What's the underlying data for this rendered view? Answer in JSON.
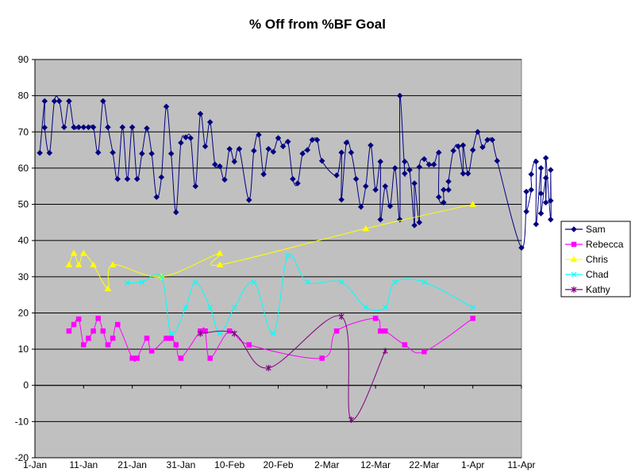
{
  "chart_data": {
    "type": "line",
    "title": "% Off from %BF Goal",
    "xlabel": "",
    "ylabel": "",
    "x_axis": {
      "type": "date",
      "range": [
        "2005-01-01",
        "2005-04-11"
      ],
      "ticks": [
        "2005-01-01",
        "2005-01-11",
        "2005-01-21",
        "2005-01-31",
        "2005-02-10",
        "2005-02-20",
        "2005-03-02",
        "2005-03-12",
        "2005-03-22",
        "2005-04-01",
        "2005-04-11"
      ],
      "tick_labels": [
        "1-Jan",
        "11-Jan",
        "21-Jan",
        "31-Jan",
        "10-Feb",
        "20-Feb",
        "2-Mar",
        "12-Mar",
        "22-Mar",
        "1-Apr",
        "11-Apr"
      ]
    },
    "y_axis": {
      "range": [
        -20,
        90
      ],
      "ticks": [
        -20,
        -10,
        0,
        10,
        20,
        30,
        40,
        50,
        60,
        70,
        80,
        90
      ],
      "tick_labels": [
        "-20",
        "-10",
        "0",
        "10",
        "20",
        "30",
        "40",
        "50",
        "60",
        "70",
        "80",
        "90"
      ]
    },
    "grid": "horizontal major gridlines",
    "plot_background": "#c0c0c0",
    "legend": {
      "position": "right"
    },
    "series": [
      {
        "name": "Sam",
        "color": "#000080",
        "marker": "diamond",
        "smooth": true,
        "points": [
          [
            "2005-01-02",
            64.2
          ],
          [
            "2005-01-03",
            78.5
          ],
          [
            "2005-01-03",
            71.2
          ],
          [
            "2005-01-04",
            64.2
          ],
          [
            "2005-01-05",
            78.5
          ],
          [
            "2005-01-06",
            78.5
          ],
          [
            "2005-01-07",
            71.3
          ],
          [
            "2005-01-08",
            78.5
          ],
          [
            "2005-01-09",
            71.3
          ],
          [
            "2005-01-10",
            71.3
          ],
          [
            "2005-01-11",
            71.3
          ],
          [
            "2005-01-12",
            71.3
          ],
          [
            "2005-01-13",
            71.3
          ],
          [
            "2005-01-14",
            64.3
          ],
          [
            "2005-01-15",
            78.5
          ],
          [
            "2005-01-16",
            71.3
          ],
          [
            "2005-01-17",
            64.3
          ],
          [
            "2005-01-18",
            57.0
          ],
          [
            "2005-01-19",
            71.3
          ],
          [
            "2005-01-20",
            57.0
          ],
          [
            "2005-01-21",
            71.3
          ],
          [
            "2005-01-22",
            57.0
          ],
          [
            "2005-01-23",
            64.0
          ],
          [
            "2005-01-24",
            71.0
          ],
          [
            "2005-01-25",
            64.0
          ],
          [
            "2005-01-26",
            52.0
          ],
          [
            "2005-01-27",
            57.5
          ],
          [
            "2005-01-28",
            77.0
          ],
          [
            "2005-01-29",
            64.0
          ],
          [
            "2005-01-30",
            47.8
          ],
          [
            "2005-01-31",
            67.0
          ],
          [
            "2005-02-01",
            68.5
          ],
          [
            "2005-02-02",
            68.3
          ],
          [
            "2005-02-03",
            55.0
          ],
          [
            "2005-02-04",
            75.0
          ],
          [
            "2005-02-05",
            66.0
          ],
          [
            "2005-02-06",
            72.7
          ],
          [
            "2005-02-07",
            61.0
          ],
          [
            "2005-02-08",
            60.5
          ],
          [
            "2005-02-09",
            56.8
          ],
          [
            "2005-02-10",
            65.3
          ],
          [
            "2005-02-11",
            61.8
          ],
          [
            "2005-02-12",
            65.3
          ],
          [
            "2005-02-14",
            51.2
          ],
          [
            "2005-02-15",
            64.8
          ],
          [
            "2005-02-16",
            69.2
          ],
          [
            "2005-02-17",
            58.3
          ],
          [
            "2005-02-18",
            65.3
          ],
          [
            "2005-02-19",
            64.5
          ],
          [
            "2005-02-20",
            68.3
          ],
          [
            "2005-02-21",
            66.0
          ],
          [
            "2005-02-22",
            67.3
          ],
          [
            "2005-02-23",
            57.0
          ],
          [
            "2005-02-24",
            55.8
          ],
          [
            "2005-02-25",
            64.0
          ],
          [
            "2005-02-26",
            65.0
          ],
          [
            "2005-02-27",
            67.8
          ],
          [
            "2005-02-28",
            67.8
          ],
          [
            "2005-03-01",
            62.0
          ],
          [
            "2005-03-04",
            58.0
          ],
          [
            "2005-03-05",
            64.3
          ],
          [
            "2005-03-05",
            51.3
          ],
          [
            "2005-03-06",
            67.0
          ],
          [
            "2005-03-07",
            64.3
          ],
          [
            "2005-03-08",
            57.0
          ],
          [
            "2005-03-09",
            49.3
          ],
          [
            "2005-03-10",
            55.0
          ],
          [
            "2005-03-11",
            66.3
          ],
          [
            "2005-03-12",
            54.0
          ],
          [
            "2005-03-13",
            61.8
          ],
          [
            "2005-03-13",
            45.8
          ],
          [
            "2005-03-14",
            55.0
          ],
          [
            "2005-03-15",
            49.5
          ],
          [
            "2005-03-16",
            60.0
          ],
          [
            "2005-03-17",
            45.8
          ],
          [
            "2005-03-17",
            80.0
          ],
          [
            "2005-03-18",
            58.5
          ],
          [
            "2005-03-18",
            61.8
          ],
          [
            "2005-03-19",
            59.5
          ],
          [
            "2005-03-20",
            44.2
          ],
          [
            "2005-03-20",
            55.8
          ],
          [
            "2005-03-21",
            45.0
          ],
          [
            "2005-03-21",
            60.3
          ],
          [
            "2005-03-22",
            62.5
          ],
          [
            "2005-03-23",
            61.0
          ],
          [
            "2005-03-24",
            61.0
          ],
          [
            "2005-03-25",
            64.3
          ],
          [
            "2005-03-25",
            52.0
          ],
          [
            "2005-03-26",
            50.5
          ],
          [
            "2005-03-26",
            54.0
          ],
          [
            "2005-03-27",
            54.0
          ],
          [
            "2005-03-27",
            56.3
          ],
          [
            "2005-03-28",
            64.8
          ],
          [
            "2005-03-29",
            66.0
          ],
          [
            "2005-03-30",
            58.5
          ],
          [
            "2005-03-30",
            66.3
          ],
          [
            "2005-03-31",
            58.5
          ],
          [
            "2005-04-01",
            65.0
          ],
          [
            "2005-04-02",
            70.0
          ],
          [
            "2005-04-03",
            65.8
          ],
          [
            "2005-04-04",
            67.8
          ],
          [
            "2005-04-05",
            67.8
          ],
          [
            "2005-04-06",
            62.0
          ],
          [
            "2005-04-11",
            38.0
          ],
          [
            "2005-04-12",
            53.5
          ],
          [
            "2005-04-12",
            48.0
          ],
          [
            "2005-04-13",
            54.0
          ],
          [
            "2005-04-13",
            58.3
          ],
          [
            "2005-04-14",
            61.8
          ],
          [
            "2005-04-14",
            44.5
          ],
          [
            "2005-04-15",
            60.0
          ],
          [
            "2005-04-15",
            53.0
          ],
          [
            "2005-04-15",
            47.5
          ],
          [
            "2005-04-16",
            57.3
          ],
          [
            "2005-04-16",
            50.5
          ],
          [
            "2005-04-16",
            62.8
          ],
          [
            "2005-04-17",
            45.8
          ],
          [
            "2005-04-17",
            59.5
          ],
          [
            "2005-04-17",
            51.0
          ]
        ]
      },
      {
        "name": "Rebecca",
        "color": "#ff00ff",
        "marker": "square",
        "smooth": true,
        "points": [
          [
            "2005-01-08",
            15.0
          ],
          [
            "2005-01-09",
            16.8
          ],
          [
            "2005-01-10",
            18.3
          ],
          [
            "2005-01-11",
            11.2
          ],
          [
            "2005-01-12",
            13.0
          ],
          [
            "2005-01-13",
            15.0
          ],
          [
            "2005-01-14",
            18.5
          ],
          [
            "2005-01-15",
            15.0
          ],
          [
            "2005-01-16",
            11.2
          ],
          [
            "2005-01-17",
            13.0
          ],
          [
            "2005-01-18",
            16.8
          ],
          [
            "2005-01-21",
            7.5
          ],
          [
            "2005-01-22",
            7.5
          ],
          [
            "2005-01-24",
            13.0
          ],
          [
            "2005-01-25",
            9.5
          ],
          [
            "2005-01-28",
            13.0
          ],
          [
            "2005-01-29",
            13.0
          ],
          [
            "2005-01-30",
            11.2
          ],
          [
            "2005-01-31",
            7.5
          ],
          [
            "2005-02-04",
            15.0
          ],
          [
            "2005-02-05",
            15.0
          ],
          [
            "2005-02-06",
            7.5
          ],
          [
            "2005-02-10",
            15.0
          ],
          [
            "2005-02-14",
            11.2
          ],
          [
            "2005-03-01",
            7.5
          ],
          [
            "2005-03-04",
            15.0
          ],
          [
            "2005-03-12",
            18.5
          ],
          [
            "2005-03-13",
            15.0
          ],
          [
            "2005-03-14",
            15.0
          ],
          [
            "2005-03-18",
            11.2
          ],
          [
            "2005-03-22",
            9.3
          ],
          [
            "2005-04-01",
            18.5
          ]
        ]
      },
      {
        "name": "Chris",
        "color": "#ffff00",
        "marker": "triangle",
        "smooth": true,
        "points": [
          [
            "2005-01-08",
            33.3
          ],
          [
            "2005-01-09",
            36.5
          ],
          [
            "2005-01-10",
            33.3
          ],
          [
            "2005-01-11",
            36.5
          ],
          [
            "2005-01-13",
            33.3
          ],
          [
            "2005-01-16",
            26.7
          ],
          [
            "2005-01-17",
            33.3
          ],
          [
            "2005-01-27",
            30.0
          ],
          [
            "2005-02-08",
            36.5
          ],
          [
            "2005-02-08",
            33.3
          ],
          [
            "2005-03-10",
            43.3
          ],
          [
            "2005-04-01",
            50.0
          ]
        ]
      },
      {
        "name": "Chad",
        "color": "#00ffff",
        "marker": "x",
        "smooth": true,
        "points": [
          [
            "2005-01-20",
            28.3
          ],
          [
            "2005-01-23",
            28.5
          ],
          [
            "2005-01-27",
            30.0
          ],
          [
            "2005-01-29",
            14.3
          ],
          [
            "2005-02-01",
            21.5
          ],
          [
            "2005-02-03",
            28.5
          ],
          [
            "2005-02-06",
            21.5
          ],
          [
            "2005-02-08",
            14.3
          ],
          [
            "2005-02-11",
            21.5
          ],
          [
            "2005-02-15",
            28.5
          ],
          [
            "2005-02-19",
            14.3
          ],
          [
            "2005-02-22",
            35.8
          ],
          [
            "2005-02-26",
            28.5
          ],
          [
            "2005-03-05",
            28.5
          ],
          [
            "2005-03-10",
            21.5
          ],
          [
            "2005-03-14",
            21.5
          ],
          [
            "2005-03-16",
            28.5
          ],
          [
            "2005-03-22",
            28.5
          ],
          [
            "2005-04-01",
            21.5
          ]
        ]
      },
      {
        "name": "Kathy",
        "color": "#800080",
        "marker": "star",
        "smooth": true,
        "points": [
          [
            "2005-02-04",
            14.3
          ],
          [
            "2005-02-11",
            14.3
          ],
          [
            "2005-02-18",
            4.8
          ],
          [
            "2005-03-05",
            19.0
          ],
          [
            "2005-03-07",
            -9.5
          ],
          [
            "2005-03-14",
            9.5
          ]
        ]
      }
    ]
  }
}
